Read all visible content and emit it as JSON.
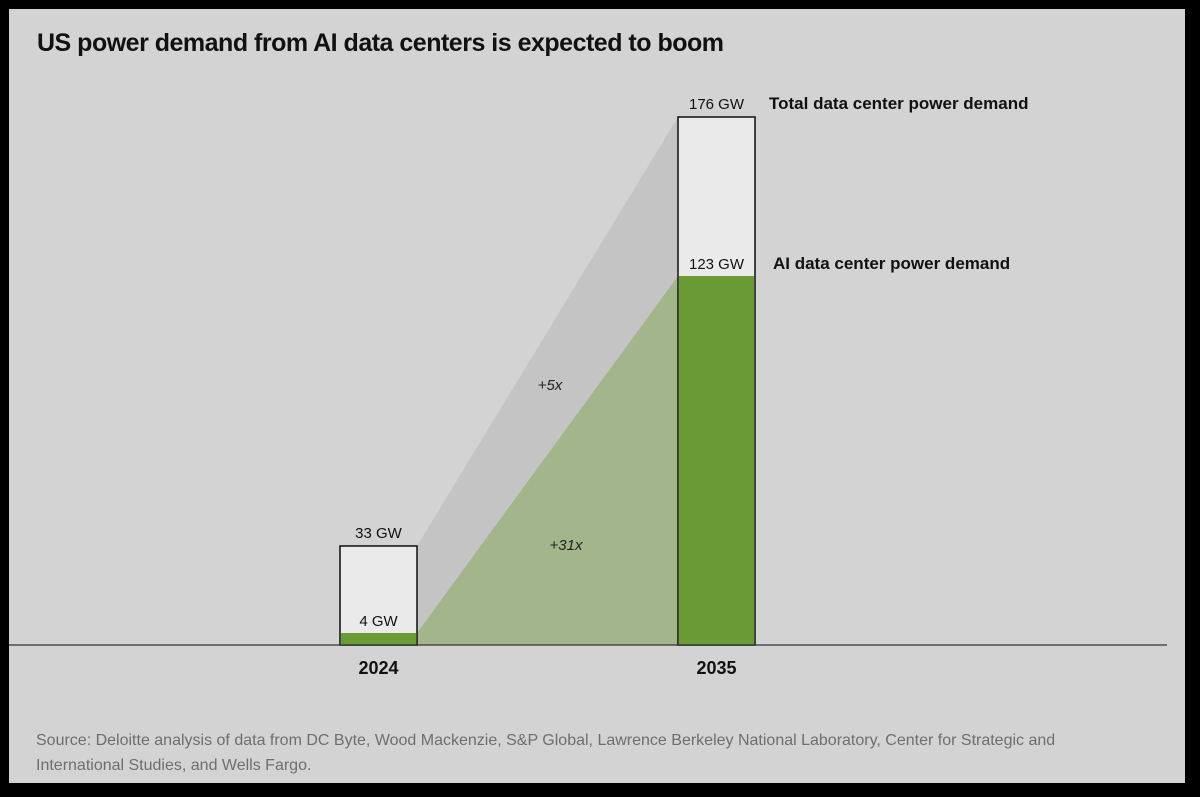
{
  "chart_data": {
    "type": "bar",
    "title": "US power demand from AI data centers is expected to boom",
    "categories": [
      "2024",
      "2035"
    ],
    "series": [
      {
        "name": "Total data center power demand",
        "values": [
          33,
          176
        ],
        "labels": [
          "33 GW",
          "176 GW"
        ],
        "color": "#eaeaea"
      },
      {
        "name": "AI data center power demand",
        "values": [
          4,
          123
        ],
        "labels": [
          "4 GW",
          "123 GW"
        ],
        "color": "#6a9a33"
      }
    ],
    "growth_annotations": [
      {
        "series": "Total data center power demand",
        "label": "+5x"
      },
      {
        "series": "AI data center power demand",
        "label": "+31x"
      }
    ],
    "unit": "GW",
    "ylim": [
      0,
      176
    ],
    "xlabel": "",
    "ylabel": "",
    "grid": false,
    "source": "Source: Deloitte analysis of data from DC Byte, Wood Mackenzie, S&P Global, Lawrence Berkeley National Laboratory, Center for Strategic and International Studies, and Wells Fargo."
  },
  "colors": {
    "background": "#d3d3d3",
    "frame": "#000000",
    "total_band": "#c4c4c4",
    "ai_band": "#a2b58b",
    "baseline": "#333333"
  }
}
